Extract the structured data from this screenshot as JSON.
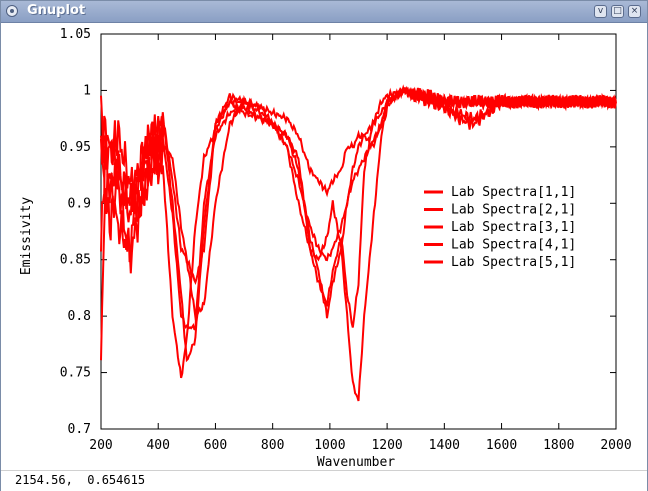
{
  "window": {
    "title": "Gnuplot",
    "buttons": [
      {
        "name": "minimize",
        "glyph": "v"
      },
      {
        "name": "maximize",
        "glyph": "□"
      },
      {
        "name": "close",
        "glyph": "×"
      }
    ]
  },
  "status": {
    "coords": "2154.56,  0.654615"
  },
  "chart_data": {
    "type": "line",
    "xlabel": "Wavenumber",
    "ylabel": "Emissivity",
    "xlim": [
      200,
      2000
    ],
    "ylim": [
      0.7,
      1.05
    ],
    "xticks": [
      "200",
      "400",
      "600",
      "800",
      "1000",
      "1200",
      "1400",
      "1600",
      "1800",
      "2000"
    ],
    "yticks": [
      "0.7",
      "0.75",
      "0.8",
      "0.85",
      "0.9",
      "0.95",
      "1",
      "1.05"
    ],
    "grid": false,
    "legend_position": "right",
    "color": "#ff0000",
    "series": [
      {
        "name": "Lab Spectra[1,1]",
        "x": [
          200,
          215,
          230,
          260,
          300,
          340,
          380,
          420,
          450,
          480,
          500,
          530,
          560,
          600,
          650,
          700,
          760,
          800,
          850,
          890,
          930,
          960,
          990,
          1010,
          1040,
          1060,
          1080,
          1100,
          1120,
          1150,
          1180,
          1200,
          1230,
          1260,
          1300,
          1350,
          1400,
          1500,
          1600,
          1700,
          1800,
          1900,
          2000
        ],
        "y": [
          0.86,
          0.95,
          0.92,
          0.93,
          0.89,
          0.93,
          0.95,
          0.92,
          0.8,
          0.745,
          0.78,
          0.88,
          0.94,
          0.965,
          0.99,
          0.99,
          0.98,
          0.97,
          0.96,
          0.94,
          0.86,
          0.85,
          0.87,
          0.9,
          0.86,
          0.8,
          0.74,
          0.725,
          0.8,
          0.88,
          0.96,
          0.985,
          0.995,
          1.0,
          0.997,
          0.995,
          0.99,
          0.99,
          0.99,
          0.99,
          0.99,
          0.99,
          0.99
        ]
      },
      {
        "name": "Lab Spectra[2,1]",
        "x": [
          200,
          215,
          230,
          260,
          300,
          340,
          380,
          420,
          450,
          480,
          500,
          530,
          560,
          600,
          650,
          700,
          760,
          800,
          850,
          890,
          930,
          960,
          990,
          1010,
          1040,
          1060,
          1080,
          1100,
          1120,
          1150,
          1180,
          1200,
          1230,
          1260,
          1300,
          1350,
          1400,
          1500,
          1600,
          1700,
          1800,
          1900,
          2000
        ],
        "y": [
          0.77,
          0.91,
          0.88,
          0.92,
          0.85,
          0.9,
          0.94,
          0.95,
          0.89,
          0.8,
          0.79,
          0.79,
          0.9,
          0.96,
          0.98,
          0.985,
          0.975,
          0.97,
          0.95,
          0.9,
          0.86,
          0.83,
          0.81,
          0.84,
          0.87,
          0.82,
          0.79,
          0.83,
          0.93,
          0.97,
          0.99,
          0.995,
          0.998,
          1.0,
          0.997,
          0.995,
          0.99,
          0.99,
          0.99,
          0.99,
          0.99,
          0.99,
          0.99
        ]
      },
      {
        "name": "Lab Spectra[3,1]",
        "x": [
          200,
          215,
          230,
          260,
          300,
          340,
          380,
          420,
          450,
          480,
          500,
          530,
          560,
          600,
          650,
          700,
          760,
          800,
          850,
          890,
          930,
          960,
          990,
          1010,
          1040,
          1060,
          1080,
          1100,
          1120,
          1150,
          1180,
          1200,
          1230,
          1260,
          1300,
          1350,
          1400,
          1450,
          1500,
          1550,
          1600,
          1700,
          1800,
          1900,
          2000
        ],
        "y": [
          0.98,
          0.93,
          0.95,
          0.96,
          0.92,
          0.9,
          0.93,
          0.95,
          0.94,
          0.88,
          0.85,
          0.8,
          0.81,
          0.9,
          0.97,
          0.99,
          0.985,
          0.97,
          0.96,
          0.93,
          0.87,
          0.84,
          0.8,
          0.83,
          0.86,
          0.9,
          0.93,
          0.95,
          0.96,
          0.97,
          0.98,
          0.99,
          0.995,
          1.0,
          0.995,
          0.99,
          0.985,
          0.975,
          0.97,
          0.98,
          0.99,
          0.99,
          0.99,
          0.99,
          0.99
        ]
      },
      {
        "name": "Lab Spectra[4,1]",
        "x": [
          200,
          215,
          230,
          260,
          300,
          340,
          380,
          420,
          450,
          480,
          500,
          530,
          560,
          600,
          650,
          700,
          760,
          800,
          850,
          890,
          930,
          960,
          990,
          1010,
          1040,
          1060,
          1080,
          1100,
          1120,
          1150,
          1180,
          1200,
          1230,
          1260,
          1300,
          1350,
          1400,
          1500,
          1600,
          1700,
          1800,
          1900,
          2000
        ],
        "y": [
          0.96,
          0.9,
          0.92,
          0.88,
          0.86,
          0.93,
          0.96,
          0.97,
          0.9,
          0.82,
          0.76,
          0.78,
          0.88,
          0.97,
          0.99,
          0.98,
          0.975,
          0.97,
          0.95,
          0.92,
          0.88,
          0.86,
          0.85,
          0.86,
          0.88,
          0.9,
          0.92,
          0.93,
          0.94,
          0.955,
          0.97,
          0.99,
          0.995,
          1.0,
          0.997,
          0.995,
          0.99,
          0.99,
          0.99,
          0.99,
          0.99,
          0.99,
          0.99
        ]
      },
      {
        "name": "Lab Spectra[5,1]",
        "x": [
          200,
          215,
          230,
          260,
          300,
          340,
          380,
          420,
          450,
          480,
          500,
          530,
          560,
          600,
          650,
          700,
          760,
          800,
          850,
          890,
          930,
          960,
          990,
          1010,
          1040,
          1060,
          1080,
          1100,
          1120,
          1150,
          1180,
          1200,
          1230,
          1260,
          1300,
          1350,
          1400,
          1450,
          1500,
          1550,
          1600,
          1700,
          1800,
          1900,
          2000
        ],
        "y": [
          0.94,
          0.97,
          0.95,
          0.93,
          0.9,
          0.94,
          0.96,
          0.97,
          0.92,
          0.86,
          0.85,
          0.83,
          0.86,
          0.97,
          0.995,
          0.99,
          0.985,
          0.98,
          0.975,
          0.96,
          0.93,
          0.92,
          0.91,
          0.92,
          0.93,
          0.95,
          0.95,
          0.96,
          0.96,
          0.95,
          0.97,
          0.99,
          0.995,
          1.0,
          0.995,
          0.99,
          0.985,
          0.98,
          0.975,
          0.98,
          0.99,
          0.99,
          0.99,
          0.99,
          0.99
        ]
      }
    ]
  }
}
